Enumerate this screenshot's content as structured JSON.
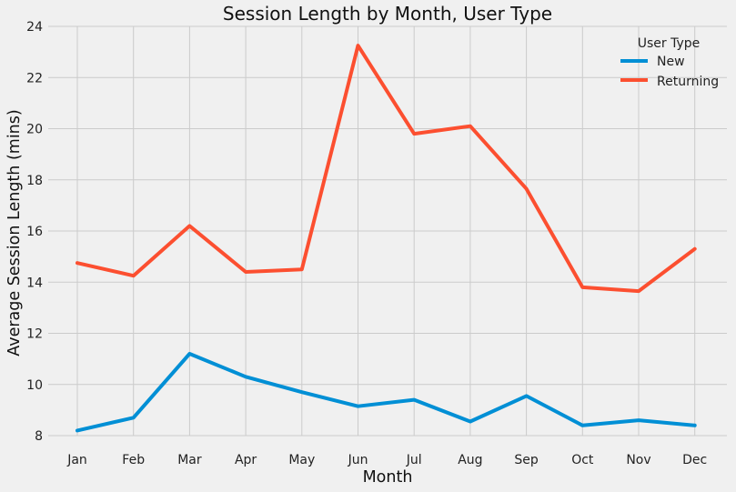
{
  "chart_data": {
    "type": "line",
    "title": "Session Length by Month, User Type",
    "xlabel": "Month",
    "ylabel": "Average Session Length (mins)",
    "categories": [
      "Jan",
      "Feb",
      "Mar",
      "Apr",
      "May",
      "Jun",
      "Jul",
      "Aug",
      "Sep",
      "Oct",
      "Nov",
      "Dec"
    ],
    "ylim": [
      8,
      24
    ],
    "yticks": [
      8,
      10,
      12,
      14,
      16,
      18,
      20,
      22,
      24
    ],
    "grid": true,
    "legend": {
      "title": "User Type",
      "position": "top-right"
    },
    "series": [
      {
        "name": "New",
        "color": "#008fd5",
        "values": [
          8.2,
          8.7,
          11.2,
          10.3,
          9.7,
          9.15,
          9.4,
          8.55,
          9.55,
          8.4,
          8.6,
          8.4
        ]
      },
      {
        "name": "Returning",
        "color": "#fc4f30",
        "values": [
          14.75,
          14.25,
          16.2,
          14.4,
          14.5,
          23.25,
          19.8,
          20.1,
          17.65,
          13.8,
          13.65,
          15.3
        ]
      }
    ]
  }
}
